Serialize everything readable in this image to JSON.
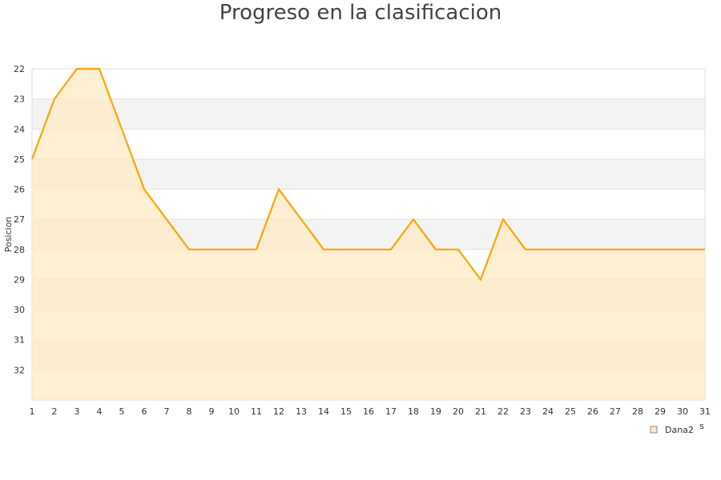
{
  "chart_data": {
    "type": "area",
    "title": "Progreso en la clasificacion",
    "xlabel": "s",
    "ylabel": "Posicion",
    "x": [
      1,
      2,
      3,
      4,
      5,
      6,
      7,
      8,
      9,
      10,
      11,
      12,
      13,
      14,
      15,
      16,
      17,
      18,
      19,
      20,
      21,
      22,
      23,
      24,
      25,
      26,
      27,
      28,
      29,
      30,
      31
    ],
    "xlim": [
      1,
      31
    ],
    "ylim": [
      33,
      22
    ],
    "y_inverted": true,
    "yticks": [
      22,
      23,
      24,
      25,
      26,
      27,
      28,
      29,
      30,
      31,
      32
    ],
    "grid": true,
    "legend_position": "bottom-right",
    "series": [
      {
        "name": "Dana2",
        "color": "#ffa500",
        "fill": "#ffe9c4",
        "values": [
          25,
          23,
          22,
          22,
          24,
          26,
          27,
          28,
          28,
          28,
          28,
          26,
          27,
          28,
          28,
          28,
          28,
          27,
          28,
          28,
          29,
          27,
          28,
          28,
          28,
          28,
          28,
          28,
          28,
          28,
          28
        ]
      }
    ]
  }
}
